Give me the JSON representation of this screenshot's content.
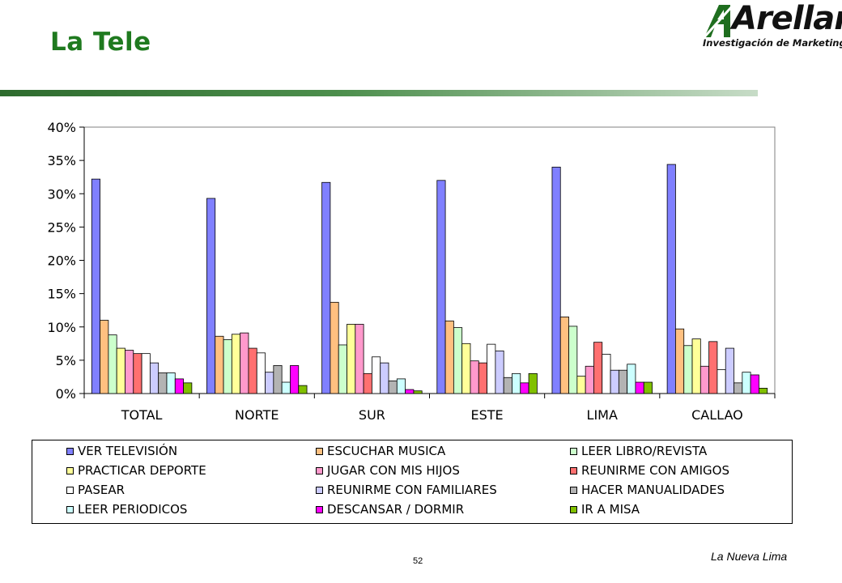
{
  "header": {
    "title": "La Tele"
  },
  "logo": {
    "wordmark": "Arellano",
    "tagline": "Investigación de Marketing"
  },
  "chart_data": {
    "type": "bar",
    "title": "",
    "xlabel": "",
    "ylabel": "",
    "ylim": [
      0,
      40
    ],
    "yticks": [
      "0%",
      "5%",
      "10%",
      "15%",
      "20%",
      "25%",
      "30%",
      "35%",
      "40%"
    ],
    "categories": [
      "TOTAL",
      "NORTE",
      "SUR",
      "ESTE",
      "LIMA",
      "CALLAO"
    ],
    "legend_position": "bottom",
    "series": [
      {
        "name": "VER TELEVISIÓN",
        "color": "#8080ff",
        "values": [
          32.2,
          29.3,
          31.7,
          32.0,
          34.0,
          34.4
        ]
      },
      {
        "name": "ESCUCHAR MUSICA",
        "color": "#ffc080",
        "values": [
          11.0,
          8.6,
          13.7,
          10.9,
          11.5,
          9.7
        ]
      },
      {
        "name": "LEER LIBRO/REVISTA",
        "color": "#ccffcc",
        "values": [
          8.8,
          8.1,
          7.3,
          9.9,
          10.1,
          7.2
        ]
      },
      {
        "name": "PRACTICAR DEPORTE",
        "color": "#ffff99",
        "values": [
          6.8,
          8.9,
          10.4,
          7.5,
          2.6,
          8.2
        ]
      },
      {
        "name": "JUGAR CON MIS HIJOS",
        "color": "#ff99cc",
        "values": [
          6.5,
          9.1,
          10.4,
          4.9,
          4.1,
          4.1
        ]
      },
      {
        "name": "REUNIRME CON AMIGOS",
        "color": "#ff7070",
        "values": [
          6.0,
          6.8,
          3.0,
          4.6,
          7.7,
          7.8
        ]
      },
      {
        "name": "PASEAR",
        "color": "#ffffff",
        "values": [
          6.0,
          6.1,
          5.5,
          7.4,
          5.9,
          3.6
        ]
      },
      {
        "name": "REUNIRME CON FAMILIARES",
        "color": "#ccccff",
        "values": [
          4.6,
          3.2,
          4.6,
          6.4,
          3.5,
          6.8
        ]
      },
      {
        "name": "HACER MANUALIDADES",
        "color": "#b3b3b3",
        "values": [
          3.1,
          4.2,
          1.9,
          2.4,
          3.5,
          1.6
        ]
      },
      {
        "name": "LEER PERIODICOS",
        "color": "#ccffff",
        "values": [
          3.1,
          1.7,
          2.2,
          3.0,
          4.4,
          3.2
        ]
      },
      {
        "name": "DESCANSAR / DORMIR",
        "color": "#ff00ff",
        "values": [
          2.2,
          4.2,
          0.6,
          1.6,
          1.7,
          2.8
        ]
      },
      {
        "name": "IR A MISA",
        "color": "#80c000",
        "values": [
          1.6,
          1.2,
          0.4,
          3.0,
          1.7,
          0.8
        ]
      }
    ]
  },
  "footer": {
    "page_number": "52",
    "source": "La Nueva Lima"
  }
}
